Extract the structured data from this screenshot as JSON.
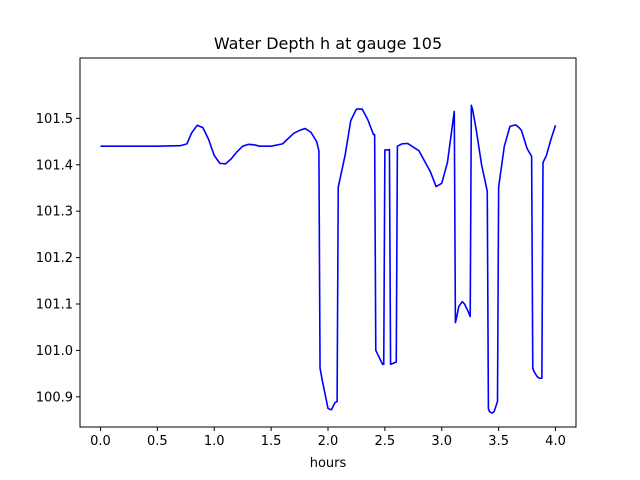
{
  "chart_data": {
    "type": "line",
    "title": "Water Depth h at gauge 105",
    "xlabel": "hours",
    "ylabel": "",
    "xlim": [
      -0.18,
      4.18
    ],
    "ylim": [
      100.835,
      101.63
    ],
    "xticks": [
      0.0,
      0.5,
      1.0,
      1.5,
      2.0,
      2.5,
      3.0,
      3.5,
      4.0
    ],
    "xtick_labels": [
      "0.0",
      "0.5",
      "1.0",
      "1.5",
      "2.0",
      "2.5",
      "3.0",
      "3.5",
      "4.0"
    ],
    "yticks": [
      100.9,
      101.0,
      101.1,
      101.2,
      101.3,
      101.4,
      101.5
    ],
    "ytick_labels": [
      "100.9",
      "101.0",
      "101.1",
      "101.2",
      "101.3",
      "101.4",
      "101.5"
    ],
    "grid": false,
    "legend": "none",
    "series": [
      {
        "color": "#0000ff",
        "x": [
          0.0,
          0.1,
          0.3,
          0.5,
          0.7,
          0.76,
          0.8,
          0.85,
          0.9,
          0.95,
          1.0,
          1.05,
          1.1,
          1.15,
          1.2,
          1.25,
          1.3,
          1.35,
          1.4,
          1.5,
          1.6,
          1.7,
          1.76,
          1.8,
          1.85,
          1.9,
          1.92,
          1.93,
          1.95,
          2.0,
          2.03,
          2.06,
          2.08,
          2.09,
          2.15,
          2.2,
          2.25,
          2.3,
          2.35,
          2.4,
          2.41,
          2.42,
          2.45,
          2.48,
          2.49,
          2.5,
          2.53,
          2.54,
          2.55,
          2.6,
          2.61,
          2.65,
          2.7,
          2.8,
          2.9,
          2.95,
          3.0,
          3.05,
          3.1,
          3.11,
          3.12,
          3.13,
          3.15,
          3.18,
          3.2,
          3.23,
          3.25,
          3.26,
          3.27,
          3.3,
          3.35,
          3.4,
          3.41,
          3.42,
          3.44,
          3.46,
          3.49,
          3.5,
          3.51,
          3.55,
          3.6,
          3.65,
          3.68,
          3.7,
          3.75,
          3.79,
          3.8,
          3.81,
          3.84,
          3.86,
          3.88,
          3.89,
          3.9,
          3.92,
          3.96,
          4.0
        ],
        "y": [
          101.44,
          101.44,
          101.44,
          101.44,
          101.441,
          101.445,
          101.468,
          101.485,
          101.48,
          101.455,
          101.42,
          101.403,
          101.402,
          101.413,
          101.428,
          101.44,
          101.444,
          101.443,
          101.44,
          101.44,
          101.445,
          101.468,
          101.475,
          101.478,
          101.47,
          101.45,
          101.43,
          100.962,
          100.935,
          100.875,
          100.872,
          100.887,
          100.89,
          101.352,
          101.42,
          101.495,
          101.52,
          101.52,
          101.497,
          101.465,
          101.465,
          101.0,
          100.985,
          100.97,
          100.97,
          101.432,
          101.432,
          101.433,
          100.97,
          100.975,
          101.44,
          101.445,
          101.446,
          101.43,
          101.385,
          101.353,
          101.36,
          101.405,
          101.497,
          101.515,
          101.06,
          101.07,
          101.095,
          101.105,
          101.1,
          101.085,
          101.073,
          101.528,
          101.52,
          101.48,
          101.4,
          101.343,
          100.875,
          100.868,
          100.865,
          100.868,
          100.89,
          101.352,
          101.37,
          101.44,
          101.483,
          101.486,
          101.48,
          101.474,
          101.435,
          101.418,
          100.962,
          100.955,
          100.943,
          100.94,
          100.94,
          101.405,
          101.41,
          101.42,
          101.455,
          101.485
        ]
      }
    ]
  }
}
